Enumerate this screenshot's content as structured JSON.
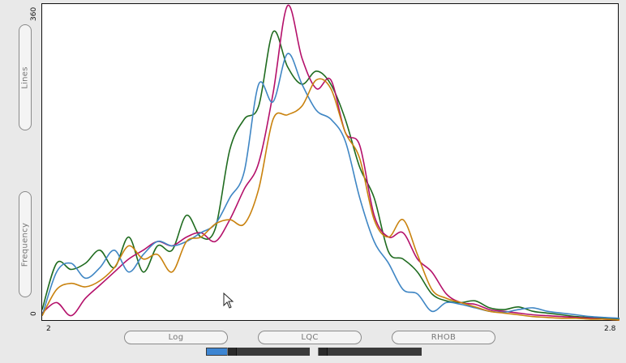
{
  "axes": {
    "y_max_label": "360",
    "y_min_label": "0",
    "x_min_label": "2",
    "x_max_label": "2.8"
  },
  "side_buttons": {
    "lines_label": "Lines",
    "frequency_label": "Frequency"
  },
  "bottom_buttons": [
    {
      "label": "Log"
    },
    {
      "label": "LQC"
    },
    {
      "label": "RHOB"
    }
  ],
  "sliders": [
    {
      "fill_fraction": 0.2
    },
    {
      "fill_fraction": 0.0
    }
  ],
  "colors": {
    "dark_green": "#1f6b1f",
    "magenta": "#b4106a",
    "blue": "#3f86c4",
    "orange": "#c9820e"
  },
  "chart_data": {
    "type": "line",
    "xlim": [
      2,
      2.8
    ],
    "ylim": [
      0,
      360
    ],
    "xlabel": "",
    "ylabel": "Frequency",
    "grid": false,
    "series": [
      {
        "color": "#1f6b1f",
        "x": [
          2.0,
          2.02,
          2.04,
          2.06,
          2.08,
          2.1,
          2.12,
          2.14,
          2.16,
          2.18,
          2.2,
          2.22,
          2.24,
          2.26,
          2.28,
          2.3,
          2.32,
          2.34,
          2.36,
          2.38,
          2.4,
          2.42,
          2.44,
          2.46,
          2.48,
          2.5,
          2.52,
          2.54,
          2.56,
          2.58,
          2.6,
          2.62,
          2.64,
          2.66,
          2.68,
          2.7,
          2.72,
          2.74,
          2.76,
          2.78,
          2.8
        ],
        "y": [
          12,
          65,
          58,
          65,
          80,
          60,
          95,
          55,
          85,
          80,
          120,
          95,
          105,
          195,
          230,
          245,
          330,
          290,
          270,
          285,
          270,
          230,
          175,
          140,
          78,
          70,
          55,
          30,
          22,
          20,
          22,
          14,
          12,
          15,
          10,
          8,
          6,
          4,
          3,
          2,
          1
        ]
      },
      {
        "color": "#b4106a",
        "x": [
          2.0,
          2.02,
          2.04,
          2.06,
          2.08,
          2.1,
          2.12,
          2.14,
          2.16,
          2.18,
          2.2,
          2.22,
          2.24,
          2.26,
          2.28,
          2.3,
          2.32,
          2.34,
          2.36,
          2.38,
          2.4,
          2.42,
          2.44,
          2.46,
          2.48,
          2.5,
          2.52,
          2.54,
          2.56,
          2.58,
          2.6,
          2.62,
          2.64,
          2.66,
          2.68,
          2.7,
          2.72,
          2.74,
          2.76,
          2.78,
          2.8
        ],
        "y": [
          8,
          20,
          5,
          25,
          40,
          55,
          70,
          80,
          90,
          85,
          95,
          100,
          90,
          115,
          150,
          180,
          260,
          360,
          300,
          265,
          275,
          215,
          200,
          120,
          95,
          100,
          70,
          55,
          30,
          20,
          18,
          12,
          10,
          8,
          6,
          5,
          4,
          3,
          2,
          1,
          0
        ]
      },
      {
        "color": "#3f86c4",
        "x": [
          2.0,
          2.02,
          2.04,
          2.06,
          2.08,
          2.1,
          2.12,
          2.14,
          2.16,
          2.18,
          2.2,
          2.22,
          2.24,
          2.26,
          2.28,
          2.3,
          2.32,
          2.34,
          2.36,
          2.38,
          2.4,
          2.42,
          2.44,
          2.46,
          2.48,
          2.5,
          2.52,
          2.54,
          2.56,
          2.58,
          2.6,
          2.62,
          2.64,
          2.66,
          2.68,
          2.7,
          2.72,
          2.74,
          2.76,
          2.78,
          2.8
        ],
        "y": [
          5,
          55,
          65,
          48,
          60,
          80,
          55,
          75,
          90,
          85,
          90,
          100,
          110,
          140,
          170,
          270,
          250,
          305,
          270,
          240,
          230,
          205,
          140,
          90,
          65,
          35,
          30,
          10,
          20,
          18,
          14,
          10,
          9,
          12,
          14,
          10,
          8,
          6,
          4,
          3,
          2
        ]
      },
      {
        "color": "#c9820e",
        "x": [
          2.0,
          2.02,
          2.04,
          2.06,
          2.08,
          2.1,
          2.12,
          2.14,
          2.16,
          2.18,
          2.2,
          2.22,
          2.24,
          2.26,
          2.28,
          2.3,
          2.32,
          2.34,
          2.36,
          2.38,
          2.4,
          2.42,
          2.44,
          2.46,
          2.48,
          2.5,
          2.52,
          2.54,
          2.56,
          2.58,
          2.6,
          2.62,
          2.64,
          2.66,
          2.68,
          2.7,
          2.72,
          2.74,
          2.76,
          2.78,
          2.8
        ],
        "y": [
          5,
          35,
          42,
          38,
          45,
          60,
          85,
          70,
          75,
          55,
          90,
          95,
          110,
          115,
          110,
          150,
          230,
          235,
          245,
          275,
          265,
          215,
          185,
          115,
          95,
          115,
          75,
          35,
          25,
          20,
          15,
          10,
          8,
          6,
          4,
          3,
          2,
          2,
          1,
          1,
          0
        ]
      }
    ]
  }
}
